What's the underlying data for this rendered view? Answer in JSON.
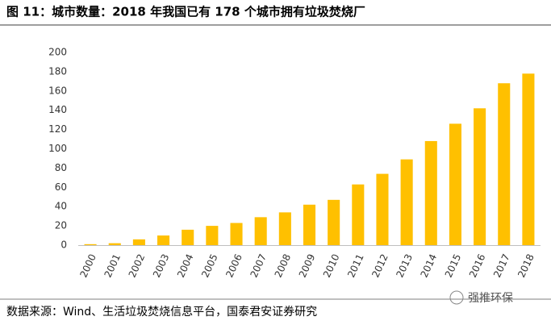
{
  "chart_data": {
    "type": "bar",
    "title": "图 11：城市数量：2018 年我国已有 178 个城市拥有垃圾焚烧厂",
    "source": "数据来源：Wind、生活垃圾焚烧信息平台，国泰君安证券研究",
    "watermark": "强推环保",
    "categories": [
      "2000",
      "2001",
      "2002",
      "2003",
      "2004",
      "2005",
      "2006",
      "2007",
      "2008",
      "2009",
      "2010",
      "2011",
      "2012",
      "2013",
      "2014",
      "2015",
      "2016",
      "2017",
      "2018"
    ],
    "values": [
      1,
      2,
      6,
      10,
      16,
      20,
      23,
      29,
      34,
      42,
      47,
      63,
      74,
      89,
      108,
      126,
      142,
      168,
      178
    ],
    "color": "#ffc000",
    "ylim": [
      0,
      200
    ],
    "yticks": [
      0,
      20,
      40,
      60,
      80,
      100,
      120,
      140,
      160,
      180,
      200
    ],
    "grid": false
  }
}
